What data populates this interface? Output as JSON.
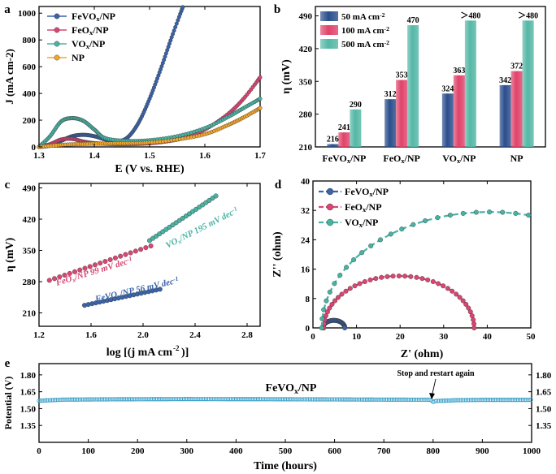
{
  "panel_letters": {
    "a": "a",
    "b": "b",
    "c": "c",
    "d": "d",
    "e": "e"
  },
  "colors": {
    "feVOx": "#3a63a8",
    "feOx": "#d94673",
    "vOx": "#48b3a4",
    "np": "#f2a62a",
    "bar50": "#2a4d8c",
    "bar100": "#e0436a",
    "bar500": "#54b7a6",
    "stability": "#3aa0c8"
  },
  "chart_data": [
    {
      "id": "a",
      "type": "line",
      "xlabel": "E (V vs. RHE)",
      "ylabel": "J (mA cm-2)",
      "xlim": [
        1.3,
        1.7
      ],
      "ylim": [
        0,
        1050
      ],
      "xticks": [
        "1.3",
        "1.4",
        "1.5",
        "1.6",
        "1.7"
      ],
      "yticks": [
        "0",
        "200",
        "400",
        "600",
        "800",
        "1000"
      ],
      "legend": [
        "FeVOx/NP",
        "FeOx/NP",
        "VOx/NP",
        "NP"
      ],
      "series": [
        {
          "name": "FeVOx/NP",
          "key": "feVOx",
          "x": [
            1.3,
            1.32,
            1.34,
            1.36,
            1.38,
            1.4,
            1.42,
            1.44,
            1.46,
            1.48,
            1.5,
            1.52,
            1.54,
            1.56
          ],
          "y": [
            0,
            10,
            45,
            80,
            90,
            80,
            55,
            40,
            70,
            180,
            360,
            580,
            820,
            1045
          ]
        },
        {
          "name": "FeOx/NP",
          "key": "feOx",
          "x": [
            1.3,
            1.32,
            1.34,
            1.36,
            1.38,
            1.4,
            1.44,
            1.48,
            1.52,
            1.56,
            1.6,
            1.64,
            1.67,
            1.7
          ],
          "y": [
            0,
            20,
            55,
            60,
            40,
            28,
            20,
            22,
            35,
            65,
            130,
            240,
            360,
            520
          ]
        },
        {
          "name": "VOx/NP",
          "key": "vOx",
          "x": [
            1.3,
            1.32,
            1.34,
            1.36,
            1.38,
            1.4,
            1.42,
            1.46,
            1.5,
            1.55,
            1.6,
            1.64,
            1.67,
            1.7
          ],
          "y": [
            0,
            80,
            190,
            215,
            195,
            130,
            65,
            45,
            50,
            80,
            140,
            220,
            290,
            360
          ]
        },
        {
          "name": "NP",
          "key": "np",
          "x": [
            1.3,
            1.34,
            1.38,
            1.42,
            1.46,
            1.5,
            1.55,
            1.6,
            1.64,
            1.67,
            1.7
          ],
          "y": [
            0,
            15,
            22,
            25,
            27,
            32,
            55,
            95,
            160,
            220,
            290
          ]
        }
      ]
    },
    {
      "id": "b",
      "type": "bar",
      "ylabel": "η (mV)",
      "ylim": [
        210,
        510
      ],
      "yticks": [
        "210",
        "280",
        "350",
        "420",
        "490"
      ],
      "categories": [
        "FeVOx/NP",
        "FeOx/NP",
        "VOx/NP",
        "NP"
      ],
      "legend": [
        "50 mA cm-2",
        "100 mA cm-2",
        "500 mA cm-2"
      ],
      "series": [
        {
          "name": "50 mA cm-2",
          "key": "bar50",
          "values": [
            216,
            312,
            324,
            342
          ],
          "labels": [
            "216",
            "312",
            "324",
            "342"
          ]
        },
        {
          "name": "100 mA cm-2",
          "key": "bar100",
          "values": [
            241,
            353,
            363,
            372
          ],
          "labels": [
            "241",
            "353",
            "363",
            "372"
          ]
        },
        {
          "name": "500 mA cm-2",
          "key": "bar500",
          "values": [
            290,
            470,
            480,
            480
          ],
          "labels": [
            "290",
            "470",
            "＞480",
            "＞480"
          ]
        }
      ]
    },
    {
      "id": "c",
      "type": "scatter",
      "xlabel": "log [(j mA cm-2)]",
      "ylabel": "η (mV)",
      "xlim": [
        1.2,
        2.9
      ],
      "ylim": [
        180,
        500
      ],
      "xticks": [
        "1.2",
        "1.6",
        "2.0",
        "2.4",
        "2.8"
      ],
      "yticks": [
        "210",
        "280",
        "350",
        "420",
        "490"
      ],
      "series": [
        {
          "name": "FeVOx/NP",
          "key": "feVOx",
          "x0": 1.55,
          "x1": 2.13,
          "y0": 227,
          "y1": 263,
          "label": "FeVOx/NP 56 mV dec-1"
        },
        {
          "name": "FeOx/NP",
          "key": "feOx",
          "x0": 1.28,
          "x1": 2.06,
          "y0": 283,
          "y1": 360,
          "label": "FeOx/NP 99 mV dec-1"
        },
        {
          "name": "VOx/NP",
          "key": "vOx",
          "x0": 2.05,
          "x1": 2.56,
          "y0": 372,
          "y1": 472,
          "label": "VOx/NP 195 mV dec-1"
        }
      ]
    },
    {
      "id": "d",
      "type": "scatter",
      "xlabel": "Z' (ohm)",
      "ylabel": "Z'' (ohm)",
      "xlim": [
        0,
        50
      ],
      "ylim": [
        0,
        40
      ],
      "xticks": [
        "0",
        "10",
        "20",
        "30",
        "40",
        "50"
      ],
      "yticks": [
        "0",
        "8",
        "16",
        "24",
        "32",
        "40"
      ],
      "legend": [
        "FeVOx/NP",
        "FeOx/NP",
        "VOx/NP"
      ],
      "series": [
        {
          "name": "FeVOx/NP",
          "key": "feVOx",
          "Rs": 2.3,
          "Rct": 5.0
        },
        {
          "name": "FeOx/NP",
          "key": "feOx",
          "Rs": 2.5,
          "Rct": 34.5
        },
        {
          "name": "VOx/NP",
          "key": "vOx",
          "Rs": 2.0,
          "Rct": 77.0
        }
      ]
    },
    {
      "id": "e",
      "type": "line",
      "xlabel": "Time (hours)",
      "ylabel": "Potential (V)",
      "xlim": [
        0,
        1000
      ],
      "ylim": [
        1.2,
        1.9
      ],
      "xticks": [
        "0",
        "100",
        "200",
        "300",
        "400",
        "500",
        "600",
        "700",
        "800",
        "900",
        "1000"
      ],
      "yticks": [
        "1.35",
        "1.50",
        "1.65",
        "1.80"
      ],
      "title": "FeVOx/NP",
      "annotation": "Stop and restart again",
      "series": [
        {
          "name": "FeVOx/NP",
          "key": "stability",
          "x": [
            0,
            50,
            150,
            300,
            450,
            600,
            700,
            795,
            800,
            805,
            850,
            900,
            1000
          ],
          "y": [
            1.57,
            1.58,
            1.583,
            1.585,
            1.584,
            1.582,
            1.58,
            1.579,
            1.56,
            1.568,
            1.575,
            1.578,
            1.578
          ]
        }
      ]
    }
  ]
}
